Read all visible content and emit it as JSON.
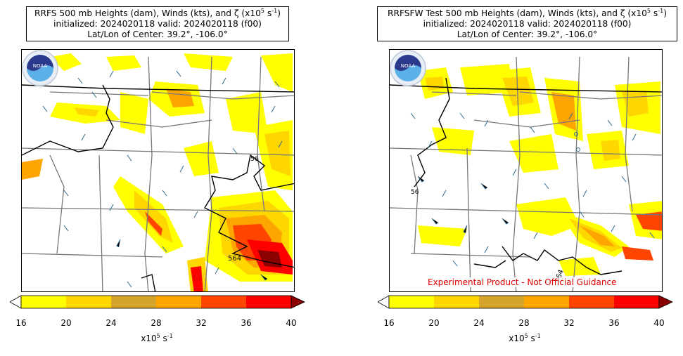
{
  "panels": [
    {
      "title_line1_pre": "RRFS 500 mb Heights (dam), Winds (kts), and ζ (x10",
      "title_exp": "5",
      "title_unit_pre": " s",
      "title_unit_exp": "-1",
      "title_close": ")",
      "title_line2": "initialized: 2024020118 valid: 2024020118 (f00)",
      "title_line3": "Lat/Lon of Center: 39.2°, -106.0°",
      "contour_label": "564",
      "contour_label_top": "56",
      "logo_text": "NOAA"
    },
    {
      "title_line1_pre": "RRFSFW Test 500 mb Heights (dam), Winds (kts), and ζ (x10",
      "title_exp": "5",
      "title_unit_pre": " s",
      "title_unit_exp": "-1",
      "title_close": ")",
      "title_line2": "initialized: 2024020118 valid: 2024020118 (f00)",
      "title_line3": "Lat/Lon of Center: 39.2°, -106.0°",
      "contour_label": "564",
      "contour_label_top": "56",
      "logo_text": "NOAA",
      "disclaimer": "Experimental Product - Not Official Guidance"
    }
  ],
  "colorbar": {
    "ticks": [
      "16",
      "20",
      "24",
      "28",
      "32",
      "36",
      "40"
    ],
    "colors": [
      "#ffff00",
      "#ffd700",
      "#d4a52a",
      "#ffa500",
      "#ff4500",
      "#ff0000"
    ],
    "extend_min_color": "#ffffff",
    "extend_max_color": "#8b0000",
    "unit_pre": "x10",
    "unit_exp": "5",
    "unit_mid": " s",
    "unit_exp2": "-1"
  }
}
